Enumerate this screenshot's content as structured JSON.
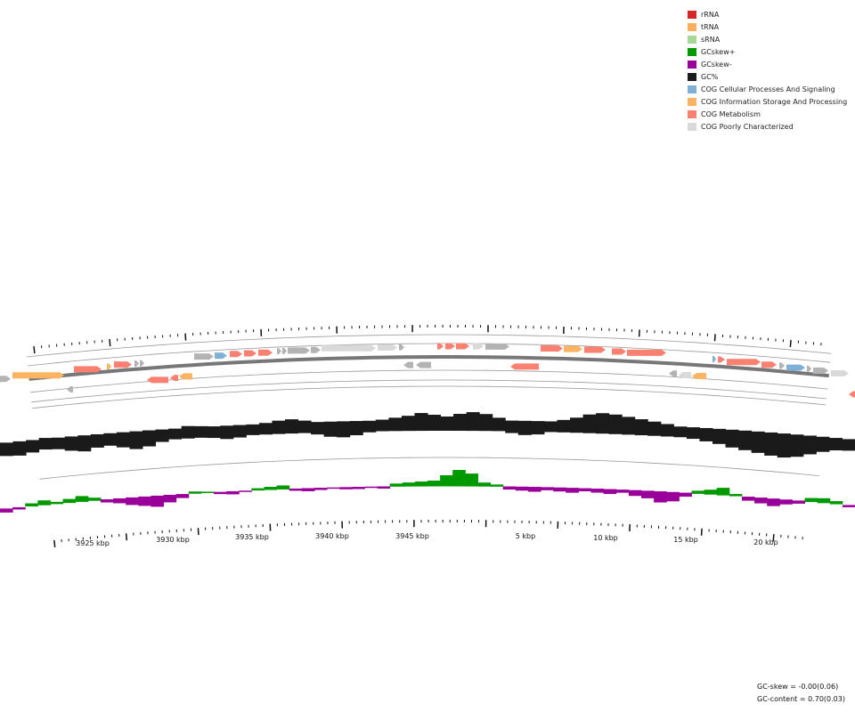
{
  "legend": [
    {
      "label": "rRNA",
      "color": "#d62728"
    },
    {
      "label": "tRNA",
      "color": "#fdae61"
    },
    {
      "label": "sRNA",
      "color": "#a6d996"
    },
    {
      "label": "GCskew+",
      "color": "#009900"
    },
    {
      "label": "GCskew-",
      "color": "#990099"
    },
    {
      "label": "GC%",
      "color": "#1a1a1a"
    },
    {
      "label": "COG Cellular Processes And Signaling",
      "color": "#7fb0d6"
    },
    {
      "label": "COG Information Storage And Processing",
      "color": "#fdb462"
    },
    {
      "label": "COG Metabolism",
      "color": "#fa8072"
    },
    {
      "label": "COG Poorly Characterized",
      "color": "#d9d9d9"
    }
  ],
  "stats": {
    "gc_skew": "GC-skew = -0.00(0.06)",
    "gc_content": "GC-content = 0.70(0.03)"
  },
  "kbp_labels": [
    "3925 kbp",
    "3930 kbp",
    "3935 kbp",
    "3940 kbp",
    "3945 kbp",
    "5 kbp",
    "10 kbp",
    "15 kbp",
    "20 kbp"
  ],
  "colors": {
    "metabolism": "#fa8072",
    "info": "#fdb462",
    "cellular": "#7fb0d6",
    "poorly": "#d9d9d9",
    "unknown": "#b3b3b3",
    "gc": "#1a1a1a",
    "skew_pos": "#009900",
    "skew_neg": "#990099"
  }
}
